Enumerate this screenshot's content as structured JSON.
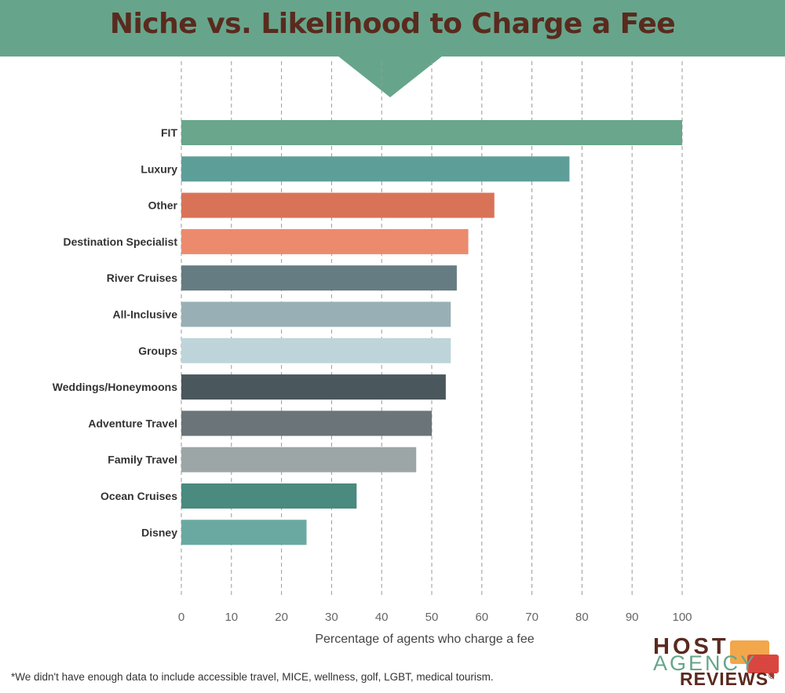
{
  "chart_data": {
    "type": "bar",
    "orientation": "horizontal",
    "title": "Niche vs. Likelihood to Charge a Fee",
    "xlabel": "Percentage of agents who charge a fee",
    "ylabel": "",
    "xlim": [
      0,
      100
    ],
    "xticks": [
      0,
      10,
      20,
      30,
      40,
      50,
      60,
      70,
      80,
      90,
      100
    ],
    "grid": "vertical-dashed",
    "categories": [
      "FIT",
      "Luxury",
      "Other",
      "Destination Specialist",
      "River Cruises",
      "All-Inclusive",
      "Groups",
      "Weddings/Honeymoons",
      "Adventure Travel",
      "Family Travel",
      "Ocean Cruises",
      "Disney"
    ],
    "values": [
      100,
      77.5,
      62.5,
      57.3,
      55,
      53.8,
      53.8,
      52.8,
      50,
      46.9,
      35,
      25
    ],
    "colors": [
      "#69a68c",
      "#5e9e99",
      "#d97358",
      "#ec8a6e",
      "#657c82",
      "#98b0b5",
      "#bdd5da",
      "#4a575d",
      "#6b7479",
      "#9ca6a7",
      "#4a8a7f",
      "#6aa9a1"
    ]
  },
  "footnote": "*We didn't have enough data to include accessible travel, MICE, wellness, golf, LGBT, medical tourism.",
  "logo": {
    "line1": "HOST",
    "line2": "AGENCY",
    "line3": "REVIEWS",
    "mark": "®"
  }
}
